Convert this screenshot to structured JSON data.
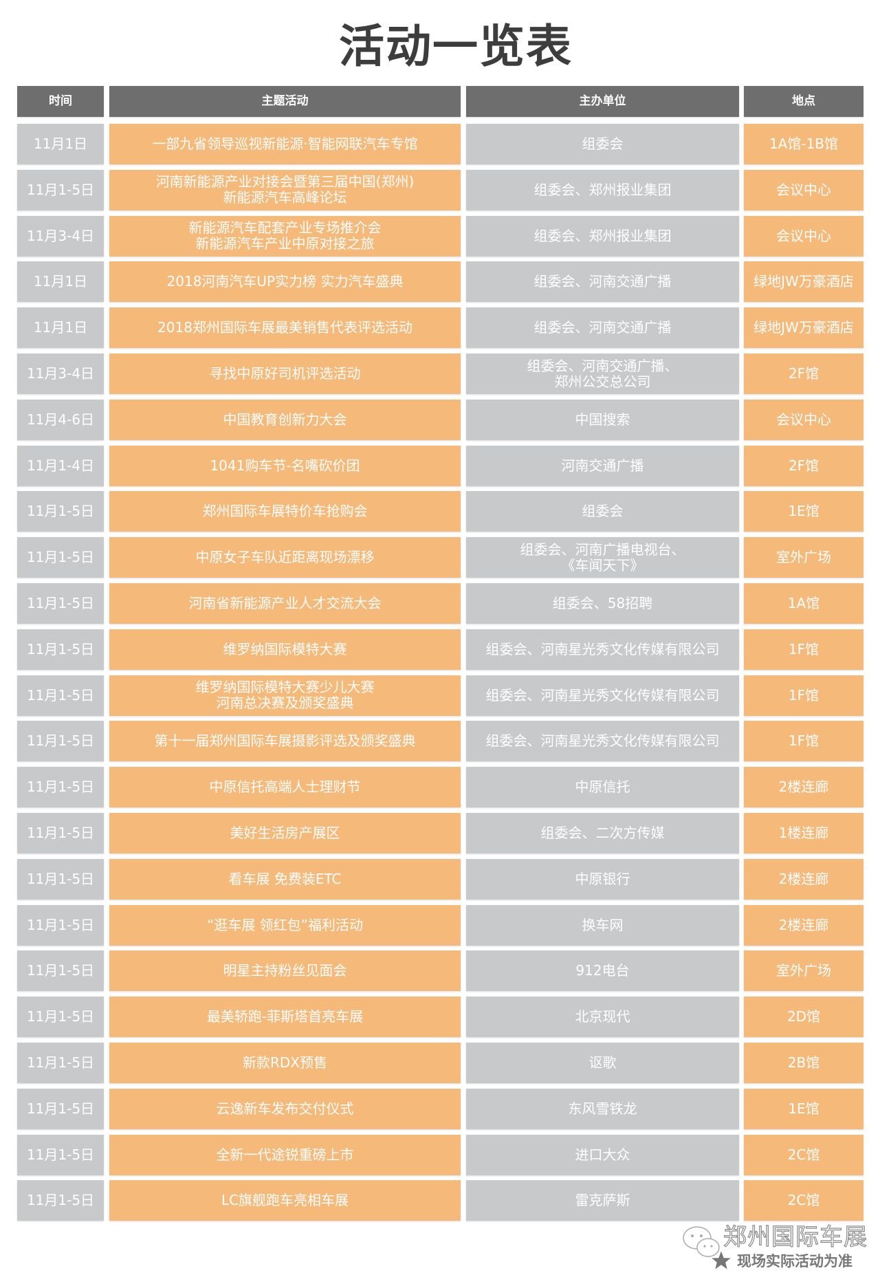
{
  "title": "活动一览表",
  "columns": [
    "时间",
    "主题活动",
    "主办单位",
    "地点"
  ],
  "colors": {
    "header": "#6e6e6e",
    "gray_cell": "#c8c9cb",
    "orange_cell": "#f5b97a",
    "text": "#ffffff"
  },
  "rows": [
    {
      "time": "11月1日",
      "activity": "一部九省领导巡视新能源·智能网联汽车专馆",
      "organizer": "组委会",
      "venue": "1A馆-1B馆"
    },
    {
      "time": "11月1-5日",
      "activity": "河南新能源产业对接会暨第三届中国(郑州)\n新能源汽车高峰论坛",
      "organizer": "组委会、郑州报业集团",
      "venue": "会议中心"
    },
    {
      "time": "11月3-4日",
      "activity": "新能源汽车配套产业专场推介会\n新能源汽车产业中原对接之旅",
      "organizer": "组委会、郑州报业集团",
      "venue": "会议中心"
    },
    {
      "time": "11月1日",
      "activity": "2018河南汽车UP实力榜 实力汽车盛典",
      "organizer": "组委会、河南交通广播",
      "venue": "绿地JW万豪酒店"
    },
    {
      "time": "11月1日",
      "activity": "2018郑州国际车展最美销售代表评选活动",
      "organizer": "组委会、河南交通广播",
      "venue": "绿地JW万豪酒店"
    },
    {
      "time": "11月3-4日",
      "activity": "寻找中原好司机评选活动",
      "organizer": "组委会、河南交通广播、\n郑州公交总公司",
      "venue": "2F馆"
    },
    {
      "time": "11月4-6日",
      "activity": "中国教育创新力大会",
      "organizer": "中国搜索",
      "venue": "会议中心"
    },
    {
      "time": "11月1-4日",
      "activity": "1041购车节-名嘴砍价团",
      "organizer": "河南交通广播",
      "venue": "2F馆"
    },
    {
      "time": "11月1-5日",
      "activity": "郑州国际车展特价车抢购会",
      "organizer": "组委会",
      "venue": "1E馆"
    },
    {
      "time": "11月1-5日",
      "activity": "中原女子车队近距离现场漂移",
      "organizer": "组委会、河南广播电视台、\n《车闻天下》",
      "venue": "室外广场"
    },
    {
      "time": "11月1-5日",
      "activity": "河南省新能源产业人才交流大会",
      "organizer": "组委会、58招聘",
      "venue": "1A馆"
    },
    {
      "time": "11月1-5日",
      "activity": "维罗纳国际模特大赛",
      "organizer": "组委会、河南星光秀文化传媒有限公司",
      "venue": "1F馆"
    },
    {
      "time": "11月1-5日",
      "activity": "维罗纳国际模特大赛少儿大赛\n河南总决赛及颁奖盛典",
      "organizer": "组委会、河南星光秀文化传媒有限公司",
      "venue": "1F馆"
    },
    {
      "time": "11月1-5日",
      "activity": "第十一届郑州国际车展摄影评选及颁奖盛典",
      "organizer": "组委会、河南星光秀文化传媒有限公司",
      "venue": "1F馆"
    },
    {
      "time": "11月1-5日",
      "activity": "中原信托高端人士理财节",
      "organizer": "中原信托",
      "venue": "2楼连廊"
    },
    {
      "time": "11月1-5日",
      "activity": "美好生活房产展区",
      "organizer": "组委会、二次方传媒",
      "venue": "1楼连廊"
    },
    {
      "time": "11月1-5日",
      "activity": "看车展 免费装ETC",
      "organizer": "中原银行",
      "venue": "2楼连廊"
    },
    {
      "time": "11月1-5日",
      "activity": "“逛车展 领红包”福利活动",
      "organizer": "换车网",
      "venue": "2楼连廊"
    },
    {
      "time": "11月1-5日",
      "activity": "明星主持粉丝见面会",
      "organizer": "912电台",
      "venue": "室外广场"
    },
    {
      "time": "11月1-5日",
      "activity": "最美轿跑-菲斯塔首亮车展",
      "organizer": "北京现代",
      "venue": "2D馆"
    },
    {
      "time": "11月1-5日",
      "activity": "新款RDX预售",
      "organizer": "讴歌",
      "venue": "2B馆"
    },
    {
      "time": "11月1-5日",
      "activity": "云逸新车发布交付仪式",
      "organizer": "东风雪铁龙",
      "venue": "1E馆"
    },
    {
      "time": "11月1-5日",
      "activity": "全新一代途锐重磅上市",
      "organizer": "进口大众",
      "venue": "2C馆"
    },
    {
      "time": "11月1-5日",
      "activity": "LC旗舰跑车亮相车展",
      "organizer": "雷克萨斯",
      "venue": "2C馆"
    }
  ],
  "watermark": {
    "title": "郑州国际车展",
    "subtitle": "现场实际活动为准",
    "icons": [
      "wechat-icon",
      "star-icon"
    ]
  }
}
